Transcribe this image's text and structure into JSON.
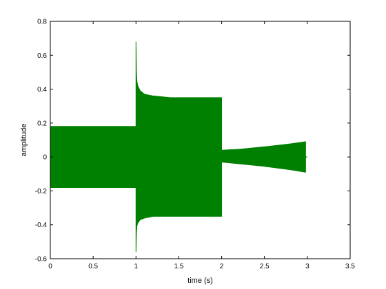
{
  "chart_data": {
    "type": "area",
    "xlabel": "time (s)",
    "ylabel": "amplitude",
    "xlim": [
      0,
      3.5
    ],
    "ylim": [
      -0.6,
      0.8
    ],
    "xticks": [
      0,
      0.5,
      1,
      1.5,
      2,
      2.5,
      3,
      3.5
    ],
    "yticks": [
      -0.6,
      -0.4,
      -0.2,
      0,
      0.2,
      0.4,
      0.6,
      0.8
    ],
    "xtick_labels": [
      "0",
      "0.5",
      "1",
      "1.5",
      "2",
      "2.5",
      "3",
      "3.5"
    ],
    "ytick_labels": [
      "-0.6",
      "-0.4",
      "-0.2",
      "0",
      "0.2",
      "0.4",
      "0.6",
      "0.8"
    ],
    "grid": false,
    "series": [
      {
        "color": "#008000",
        "envelope": [
          {
            "x": 0.0,
            "upper": 0.18,
            "lower": -0.18
          },
          {
            "x": 1.0,
            "upper": 0.18,
            "lower": -0.18
          },
          {
            "x": 1.0,
            "upper": 0.68,
            "lower": -0.56
          },
          {
            "x": 1.005,
            "upper": 0.5,
            "lower": -0.45
          },
          {
            "x": 1.01,
            "upper": 0.45,
            "lower": -0.41
          },
          {
            "x": 1.02,
            "upper": 0.42,
            "lower": -0.39
          },
          {
            "x": 1.05,
            "upper": 0.39,
            "lower": -0.37
          },
          {
            "x": 1.1,
            "upper": 0.37,
            "lower": -0.36
          },
          {
            "x": 1.2,
            "upper": 0.36,
            "lower": -0.35
          },
          {
            "x": 1.4,
            "upper": 0.35,
            "lower": -0.35
          },
          {
            "x": 2.0,
            "upper": 0.35,
            "lower": -0.35
          },
          {
            "x": 2.0,
            "upper": 0.04,
            "lower": -0.03
          },
          {
            "x": 2.2,
            "upper": 0.045,
            "lower": -0.04
          },
          {
            "x": 2.5,
            "upper": 0.06,
            "lower": -0.055
          },
          {
            "x": 2.8,
            "upper": 0.077,
            "lower": -0.075
          },
          {
            "x": 2.98,
            "upper": 0.09,
            "lower": -0.09
          },
          {
            "x": 2.98,
            "upper": 0.0,
            "lower": 0.0
          },
          {
            "x": 3.0,
            "upper": 0.0,
            "lower": 0.0
          }
        ]
      }
    ]
  }
}
